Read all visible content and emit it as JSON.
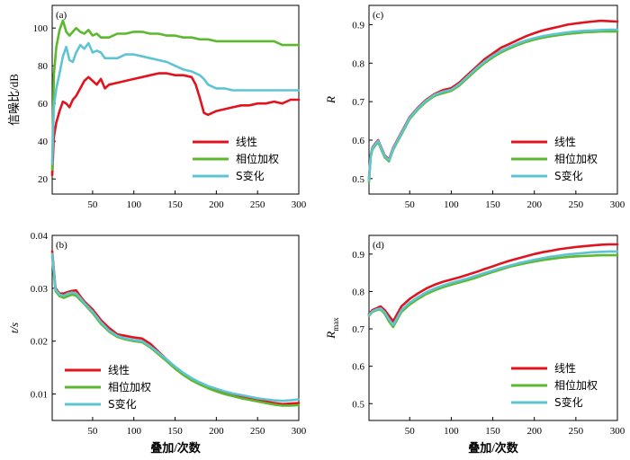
{
  "colors": {
    "linear": "#e0141e",
    "phase": "#5cb82e",
    "stransform": "#5fc4d2"
  },
  "chart_data": [
    {
      "panel": "(a)",
      "type": "line",
      "xlabel": "",
      "ylabel": "信噪比/dB",
      "xlim": [
        1,
        300
      ],
      "ylim": [
        12,
        112
      ],
      "xticks": [
        50,
        100,
        150,
        200,
        250,
        300
      ],
      "yticks": [
        20,
        40,
        60,
        80,
        100
      ],
      "legend_position": "lower-right",
      "series": [
        {
          "name": "线性",
          "color": "#e0141e",
          "x": [
            1,
            3,
            6,
            10,
            14,
            18,
            22,
            26,
            30,
            35,
            40,
            45,
            50,
            55,
            60,
            65,
            70,
            80,
            90,
            100,
            110,
            120,
            130,
            140,
            150,
            160,
            170,
            175,
            180,
            185,
            190,
            200,
            210,
            220,
            230,
            240,
            250,
            260,
            270,
            280,
            290,
            300
          ],
          "y": [
            22,
            42,
            50,
            56,
            61,
            60,
            58,
            62,
            64,
            68,
            72,
            74,
            72,
            70,
            73,
            68,
            70,
            71,
            72,
            73,
            74,
            75,
            76,
            76,
            75,
            75,
            74,
            70,
            63,
            55,
            54,
            56,
            57,
            58,
            59,
            59,
            60,
            60,
            61,
            60,
            62,
            62
          ]
        },
        {
          "name": "相位加权",
          "color": "#5cb82e",
          "x": [
            1,
            3,
            6,
            10,
            14,
            18,
            22,
            26,
            30,
            35,
            40,
            45,
            50,
            55,
            60,
            70,
            80,
            90,
            100,
            110,
            120,
            130,
            140,
            150,
            160,
            170,
            180,
            190,
            200,
            210,
            220,
            230,
            240,
            250,
            260,
            270,
            280,
            290,
            300
          ],
          "y": [
            25,
            75,
            90,
            99,
            104,
            98,
            96,
            98,
            100,
            98,
            97,
            99,
            96,
            97,
            95,
            95,
            97,
            97,
            98,
            98,
            97,
            97,
            96,
            96,
            95,
            95,
            94,
            94,
            93,
            93,
            93,
            93,
            93,
            93,
            93,
            93,
            91,
            91,
            91
          ]
        },
        {
          "name": "S变化",
          "color": "#5fc4d2",
          "x": [
            1,
            3,
            6,
            10,
            14,
            18,
            22,
            26,
            30,
            35,
            40,
            45,
            50,
            55,
            60,
            65,
            70,
            80,
            90,
            100,
            110,
            120,
            130,
            140,
            150,
            160,
            170,
            180,
            185,
            190,
            200,
            210,
            220,
            230,
            240,
            250,
            260,
            270,
            280,
            290,
            300
          ],
          "y": [
            28,
            58,
            68,
            76,
            85,
            90,
            83,
            82,
            87,
            91,
            89,
            92,
            87,
            88,
            87,
            84,
            84,
            84,
            86,
            86,
            85,
            84,
            83,
            82,
            80,
            78,
            77,
            75,
            73,
            70,
            68,
            68,
            67,
            67,
            67,
            67,
            67,
            67,
            67,
            67,
            67
          ]
        }
      ]
    },
    {
      "panel": "(b)",
      "type": "line",
      "xlabel": "叠加/次数",
      "ylabel": "t/s",
      "xlim": [
        1,
        300
      ],
      "ylim": [
        0.005,
        0.04
      ],
      "xticks": [
        50,
        100,
        150,
        200,
        250,
        300
      ],
      "yticks": [
        0.01,
        0.02,
        0.03,
        0.04
      ],
      "legend_position": "lower-left",
      "series": [
        {
          "name": "线性",
          "color": "#e0141e",
          "x": [
            1,
            5,
            10,
            15,
            20,
            25,
            30,
            35,
            40,
            50,
            60,
            70,
            80,
            90,
            100,
            110,
            120,
            130,
            140,
            150,
            160,
            170,
            180,
            190,
            200,
            210,
            220,
            230,
            240,
            250,
            260,
            270,
            280,
            290,
            300
          ],
          "y": [
            0.037,
            0.03,
            0.029,
            0.029,
            0.0293,
            0.0295,
            0.0296,
            0.0285,
            0.0275,
            0.026,
            0.024,
            0.0225,
            0.0213,
            0.021,
            0.0207,
            0.0205,
            0.0195,
            0.018,
            0.0165,
            0.015,
            0.0138,
            0.0128,
            0.012,
            0.0113,
            0.0108,
            0.0103,
            0.0098,
            0.0095,
            0.0092,
            0.0089,
            0.0086,
            0.0083,
            0.0081,
            0.0082,
            0.0083
          ]
        },
        {
          "name": "相位加权",
          "color": "#5cb82e",
          "x": [
            1,
            5,
            10,
            15,
            20,
            25,
            30,
            35,
            40,
            50,
            60,
            70,
            80,
            90,
            100,
            110,
            120,
            130,
            140,
            150,
            160,
            170,
            180,
            190,
            200,
            210,
            220,
            230,
            240,
            250,
            260,
            270,
            280,
            290,
            300
          ],
          "y": [
            0.036,
            0.0295,
            0.0285,
            0.0282,
            0.0285,
            0.0288,
            0.0286,
            0.0278,
            0.027,
            0.0253,
            0.0233,
            0.0218,
            0.0208,
            0.0203,
            0.02,
            0.0198,
            0.0188,
            0.0175,
            0.0162,
            0.0148,
            0.0136,
            0.0126,
            0.0118,
            0.0111,
            0.0105,
            0.01,
            0.0096,
            0.0092,
            0.0089,
            0.0086,
            0.0083,
            0.008,
            0.0078,
            0.0078,
            0.0079
          ]
        },
        {
          "name": "S变化",
          "color": "#5fc4d2",
          "x": [
            1,
            5,
            10,
            15,
            20,
            25,
            30,
            35,
            40,
            50,
            60,
            70,
            80,
            90,
            100,
            110,
            120,
            130,
            140,
            150,
            160,
            170,
            180,
            190,
            200,
            210,
            220,
            230,
            240,
            250,
            260,
            270,
            280,
            290,
            300
          ],
          "y": [
            0.0365,
            0.0298,
            0.0288,
            0.0286,
            0.029,
            0.0292,
            0.029,
            0.0282,
            0.0272,
            0.0256,
            0.0236,
            0.022,
            0.021,
            0.0205,
            0.0202,
            0.02,
            0.019,
            0.0178,
            0.0165,
            0.0152,
            0.014,
            0.013,
            0.0122,
            0.0115,
            0.011,
            0.0105,
            0.0101,
            0.0098,
            0.0095,
            0.0092,
            0.009,
            0.0088,
            0.0087,
            0.0088,
            0.009
          ]
        }
      ]
    },
    {
      "panel": "(c)",
      "type": "line",
      "xlabel": "",
      "ylabel": "R",
      "xlim": [
        1,
        300
      ],
      "ylim": [
        0.46,
        0.95
      ],
      "xticks": [
        50,
        100,
        150,
        200,
        250,
        300
      ],
      "yticks": [
        0.5,
        0.6,
        0.7,
        0.8,
        0.9
      ],
      "legend_position": "lower-right",
      "series": [
        {
          "name": "线性",
          "color": "#e0141e",
          "x": [
            1,
            3,
            5,
            8,
            12,
            16,
            20,
            25,
            30,
            35,
            40,
            50,
            60,
            70,
            80,
            90,
            100,
            110,
            120,
            130,
            140,
            150,
            160,
            170,
            180,
            190,
            200,
            210,
            220,
            230,
            240,
            250,
            260,
            270,
            280,
            290,
            300
          ],
          "y": [
            0.5,
            0.56,
            0.58,
            0.59,
            0.6,
            0.58,
            0.56,
            0.55,
            0.58,
            0.6,
            0.62,
            0.66,
            0.685,
            0.705,
            0.72,
            0.73,
            0.735,
            0.75,
            0.77,
            0.79,
            0.81,
            0.825,
            0.84,
            0.85,
            0.86,
            0.87,
            0.878,
            0.885,
            0.89,
            0.895,
            0.9,
            0.903,
            0.906,
            0.908,
            0.91,
            0.909,
            0.908
          ]
        },
        {
          "name": "相位加权",
          "color": "#5cb82e",
          "x": [
            1,
            3,
            5,
            8,
            12,
            16,
            20,
            25,
            30,
            35,
            40,
            50,
            60,
            70,
            80,
            90,
            100,
            110,
            120,
            130,
            140,
            150,
            160,
            170,
            180,
            190,
            200,
            210,
            220,
            230,
            240,
            250,
            260,
            270,
            280,
            290,
            300
          ],
          "y": [
            0.49,
            0.555,
            0.575,
            0.585,
            0.595,
            0.575,
            0.555,
            0.545,
            0.575,
            0.595,
            0.615,
            0.655,
            0.68,
            0.7,
            0.715,
            0.722,
            0.728,
            0.742,
            0.762,
            0.782,
            0.8,
            0.815,
            0.828,
            0.838,
            0.847,
            0.855,
            0.861,
            0.866,
            0.87,
            0.873,
            0.876,
            0.878,
            0.88,
            0.881,
            0.882,
            0.882,
            0.882
          ]
        },
        {
          "name": "S变化",
          "color": "#5fc4d2",
          "x": [
            1,
            3,
            5,
            8,
            12,
            16,
            20,
            25,
            30,
            35,
            40,
            50,
            60,
            70,
            80,
            90,
            100,
            110,
            120,
            130,
            140,
            150,
            160,
            170,
            180,
            190,
            200,
            210,
            220,
            230,
            240,
            250,
            260,
            270,
            280,
            290,
            300
          ],
          "y": [
            0.495,
            0.558,
            0.578,
            0.588,
            0.598,
            0.578,
            0.558,
            0.548,
            0.578,
            0.598,
            0.618,
            0.658,
            0.683,
            0.703,
            0.718,
            0.726,
            0.731,
            0.746,
            0.766,
            0.786,
            0.804,
            0.819,
            0.832,
            0.842,
            0.851,
            0.859,
            0.865,
            0.87,
            0.874,
            0.877,
            0.88,
            0.882,
            0.884,
            0.885,
            0.886,
            0.887,
            0.887
          ]
        }
      ]
    },
    {
      "panel": "(d)",
      "type": "line",
      "xlabel": "叠加/次数",
      "ylabel": "Rmax",
      "ylabel_main": "R",
      "ylabel_sub": "max",
      "xlim": [
        1,
        300
      ],
      "ylim": [
        0.455,
        0.95
      ],
      "xticks": [
        50,
        100,
        150,
        200,
        250,
        300
      ],
      "yticks": [
        0.5,
        0.6,
        0.7,
        0.8,
        0.9
      ],
      "legend_position": "lower-right",
      "series": [
        {
          "name": "线性",
          "color": "#e0141e",
          "x": [
            1,
            5,
            10,
            15,
            20,
            25,
            30,
            35,
            40,
            50,
            60,
            70,
            80,
            90,
            100,
            110,
            120,
            130,
            140,
            150,
            160,
            170,
            180,
            190,
            200,
            210,
            220,
            230,
            240,
            250,
            260,
            270,
            280,
            290,
            300
          ],
          "y": [
            0.74,
            0.75,
            0.755,
            0.76,
            0.75,
            0.735,
            0.72,
            0.74,
            0.76,
            0.78,
            0.795,
            0.808,
            0.818,
            0.826,
            0.832,
            0.838,
            0.845,
            0.852,
            0.86,
            0.867,
            0.875,
            0.882,
            0.888,
            0.894,
            0.9,
            0.905,
            0.909,
            0.913,
            0.916,
            0.919,
            0.921,
            0.923,
            0.925,
            0.926,
            0.926
          ]
        },
        {
          "name": "相位加权",
          "color": "#5cb82e",
          "x": [
            1,
            5,
            10,
            15,
            20,
            25,
            30,
            35,
            40,
            50,
            60,
            70,
            80,
            90,
            100,
            110,
            120,
            130,
            140,
            150,
            160,
            170,
            180,
            190,
            200,
            210,
            220,
            230,
            240,
            250,
            260,
            270,
            280,
            290,
            300
          ],
          "y": [
            0.735,
            0.745,
            0.75,
            0.752,
            0.74,
            0.72,
            0.705,
            0.725,
            0.745,
            0.765,
            0.78,
            0.793,
            0.803,
            0.811,
            0.818,
            0.824,
            0.83,
            0.837,
            0.845,
            0.852,
            0.859,
            0.866,
            0.871,
            0.876,
            0.88,
            0.884,
            0.887,
            0.89,
            0.892,
            0.894,
            0.895,
            0.896,
            0.897,
            0.897,
            0.897
          ]
        },
        {
          "name": "S变化",
          "color": "#5fc4d2",
          "x": [
            1,
            5,
            10,
            15,
            20,
            25,
            30,
            35,
            40,
            50,
            60,
            70,
            80,
            90,
            100,
            110,
            120,
            130,
            140,
            150,
            160,
            170,
            180,
            190,
            200,
            210,
            220,
            230,
            240,
            250,
            260,
            270,
            280,
            290,
            300
          ],
          "y": [
            0.737,
            0.747,
            0.752,
            0.755,
            0.744,
            0.726,
            0.71,
            0.73,
            0.75,
            0.77,
            0.785,
            0.798,
            0.808,
            0.816,
            0.823,
            0.829,
            0.835,
            0.842,
            0.849,
            0.856,
            0.863,
            0.869,
            0.875,
            0.88,
            0.885,
            0.889,
            0.893,
            0.896,
            0.899,
            0.901,
            0.903,
            0.905,
            0.906,
            0.907,
            0.907
          ]
        }
      ]
    }
  ]
}
